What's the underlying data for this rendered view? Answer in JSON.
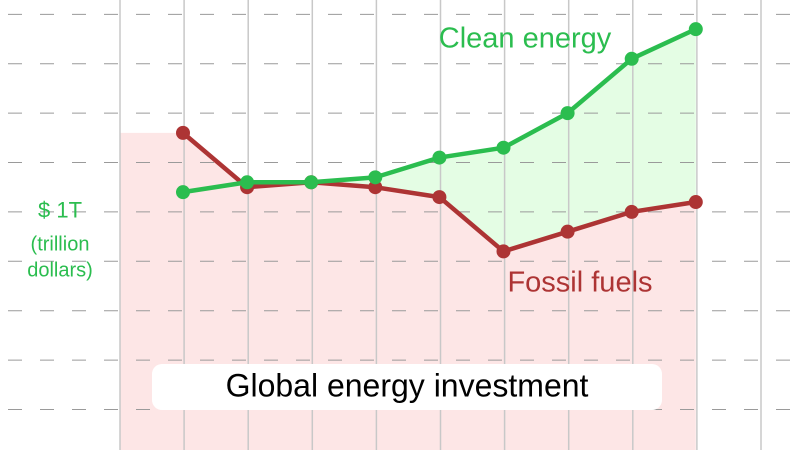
{
  "chart_data": {
    "type": "line",
    "title": "Global energy investment",
    "y_label_lines": [
      "(trillion",
      "dollars)"
    ],
    "categories": [
      null,
      null,
      null,
      null,
      null,
      null,
      null,
      null,
      null
    ],
    "series": [
      {
        "name": "Clean energy",
        "color": "#2bbd4f",
        "area_color": "#e4fde4",
        "values": [
          1.04,
          1.06,
          1.06,
          1.07,
          1.11,
          1.13,
          1.2,
          1.31,
          1.37
        ]
      },
      {
        "name": "Fossil fuels",
        "color": "#ad3434",
        "area_color": "#fde6e6",
        "values": [
          1.16,
          1.05,
          1.06,
          1.05,
          1.03,
          0.92,
          0.96,
          1.0,
          1.02
        ]
      }
    ],
    "ylim": [
      0.518,
      1.429
    ],
    "yticks": [
      {
        "value": 0.6,
        "label": null
      },
      {
        "value": 0.7,
        "label": null
      },
      {
        "value": 0.8,
        "label": null
      },
      {
        "value": 0.9,
        "label": null
      },
      {
        "value": 1,
        "label": "$ 1T"
      },
      {
        "value": 1.1,
        "label": null
      },
      {
        "value": 1.2,
        "label": null
      },
      {
        "value": 1.3,
        "label": null
      },
      {
        "value": 1.4,
        "label": null
      }
    ],
    "grid": true
  }
}
